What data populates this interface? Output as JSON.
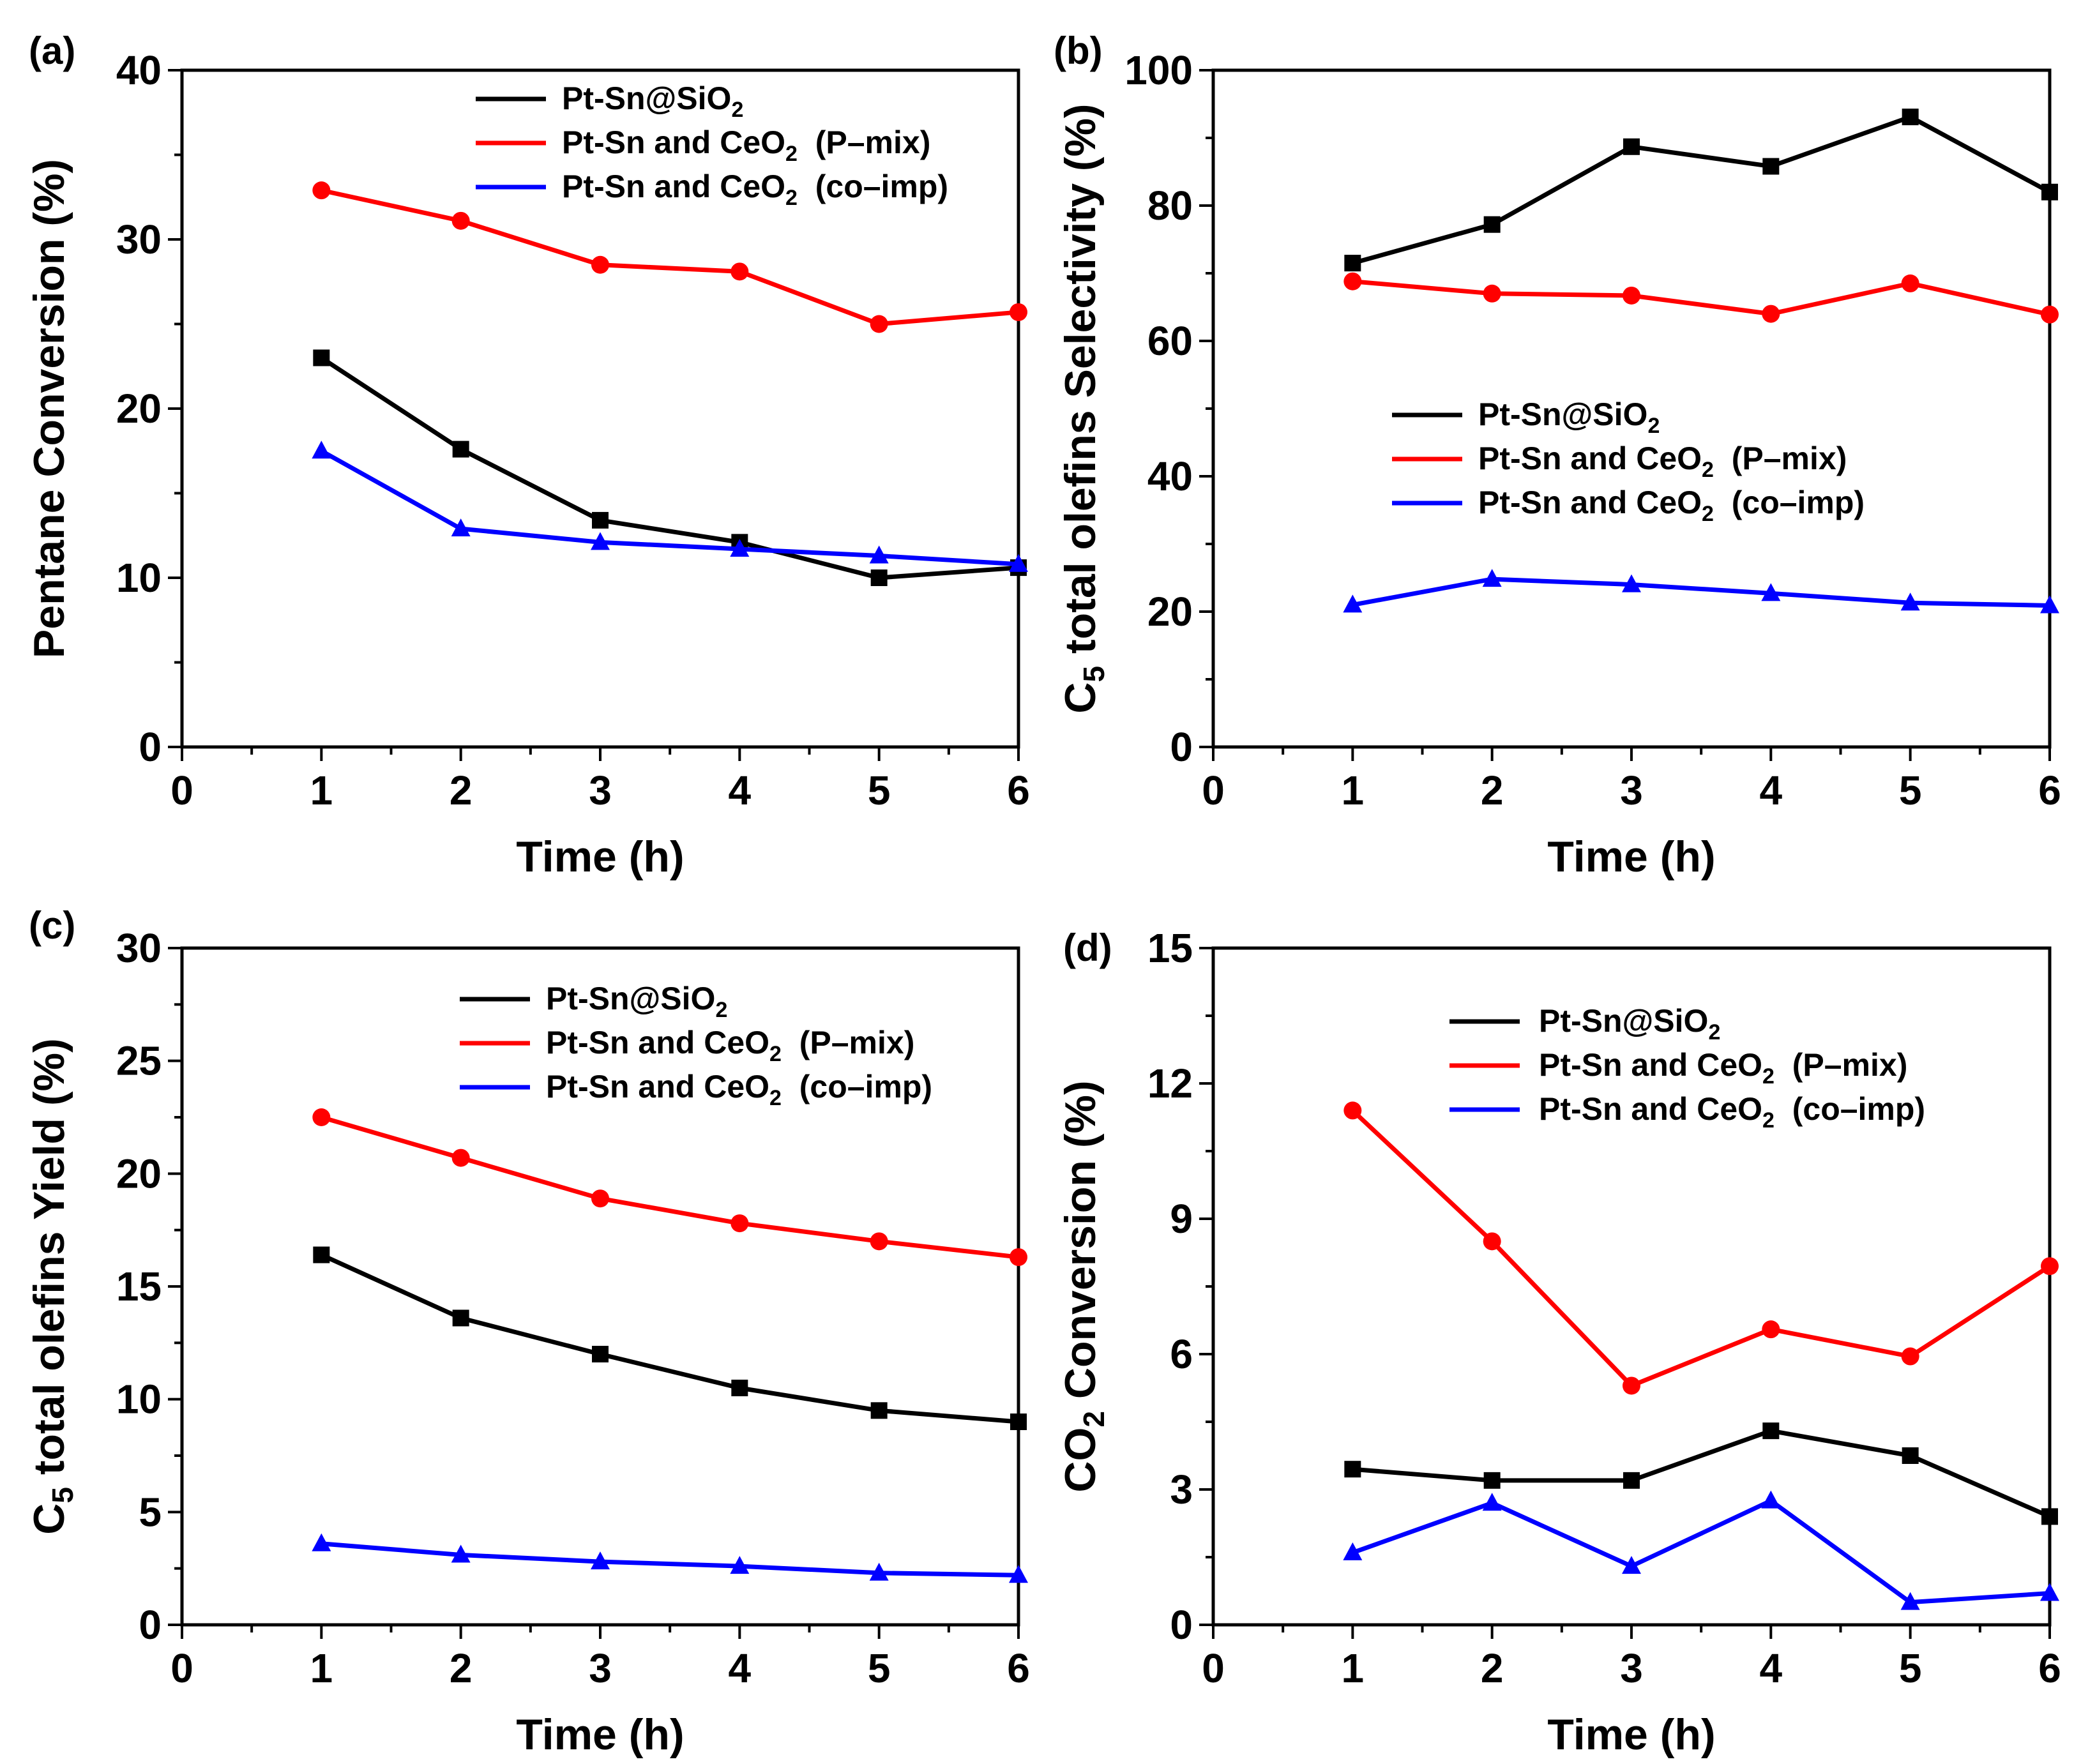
{
  "figure": {
    "colors": {
      "black": "#000000",
      "red": "#ff0000",
      "blue": "#0000ff"
    }
  },
  "chart_data": [
    {
      "panel_label": "(a)",
      "type": "line",
      "xlabel": "Time (h)",
      "ylabel": "Pentane Conversion (%)",
      "xlim": [
        0,
        6
      ],
      "ylim": [
        0,
        40
      ],
      "xticks": [
        "0",
        "1",
        "2",
        "3",
        "4",
        "5",
        "6"
      ],
      "yticks": [
        "0",
        "10",
        "20",
        "30",
        "40"
      ],
      "legend_position": "top-right",
      "x": [
        1,
        2,
        3,
        4,
        5,
        6
      ],
      "series": [
        {
          "name": "Pt-Sn@SiO",
          "sub": "2",
          "suffix": "",
          "color": "#000000",
          "marker": "square",
          "values": [
            23.0,
            17.6,
            13.4,
            12.1,
            10.0,
            10.6
          ]
        },
        {
          "name": "Pt-Sn and CeO",
          "sub": "2",
          "suffix": "  (P–mix)",
          "color": "#ff0000",
          "marker": "circle",
          "values": [
            32.9,
            31.1,
            28.5,
            28.1,
            25.0,
            25.7
          ]
        },
        {
          "name": "Pt-Sn and CeO",
          "sub": "2",
          "suffix": "  (co–imp)",
          "color": "#0000ff",
          "marker": "triangle",
          "values": [
            17.5,
            12.9,
            12.1,
            11.7,
            11.3,
            10.8
          ]
        }
      ]
    },
    {
      "panel_label": "(b)",
      "type": "line",
      "xlabel": "Time (h)",
      "ylabel": "C5 total olefins Selectivity (%)",
      "xlim": [
        0,
        6
      ],
      "ylim": [
        0,
        100
      ],
      "xticks": [
        "0",
        "1",
        "2",
        "3",
        "4",
        "5",
        "6"
      ],
      "yticks": [
        "0",
        "20",
        "40",
        "60",
        "80",
        "100"
      ],
      "legend_position": "center-right",
      "x": [
        1,
        2,
        3,
        4,
        5,
        6
      ],
      "series": [
        {
          "name": "Pt-Sn@SiO",
          "sub": "2",
          "suffix": "",
          "color": "#000000",
          "marker": "square",
          "values": [
            71.5,
            77.2,
            88.7,
            85.8,
            93.1,
            82.0
          ]
        },
        {
          "name": "Pt-Sn and CeO",
          "sub": "2",
          "suffix": "  (P–mix)",
          "color": "#ff0000",
          "marker": "circle",
          "values": [
            68.8,
            67.0,
            66.7,
            64.0,
            68.5,
            63.9
          ]
        },
        {
          "name": "Pt-Sn and CeO",
          "sub": "2",
          "suffix": "  (co–imp)",
          "color": "#0000ff",
          "marker": "triangle",
          "values": [
            21.0,
            24.8,
            24.0,
            22.7,
            21.3,
            20.9
          ]
        }
      ]
    },
    {
      "panel_label": "(c)",
      "type": "line",
      "xlabel": "Time (h)",
      "ylabel": "C5 total olefins Yield (%)",
      "xlim": [
        0,
        6
      ],
      "ylim": [
        0,
        30
      ],
      "xticks": [
        "0",
        "1",
        "2",
        "3",
        "4",
        "5",
        "6"
      ],
      "yticks": [
        "0",
        "5",
        "10",
        "15",
        "20",
        "25",
        "30"
      ],
      "legend_position": "top-right",
      "x": [
        1,
        2,
        3,
        4,
        5,
        6
      ],
      "series": [
        {
          "name": "Pt-Sn@SiO",
          "sub": "2",
          "suffix": "",
          "color": "#000000",
          "marker": "square",
          "values": [
            16.4,
            13.6,
            12.0,
            10.5,
            9.5,
            9.0
          ]
        },
        {
          "name": "Pt-Sn and CeO",
          "sub": "2",
          "suffix": "  (P–mix)",
          "color": "#ff0000",
          "marker": "circle",
          "values": [
            22.5,
            20.7,
            18.9,
            17.8,
            17.0,
            16.3
          ]
        },
        {
          "name": "Pt-Sn and CeO",
          "sub": "2",
          "suffix": "  (co–imp)",
          "color": "#0000ff",
          "marker": "triangle",
          "values": [
            3.6,
            3.1,
            2.8,
            2.6,
            2.3,
            2.2
          ]
        }
      ]
    },
    {
      "panel_label": "(d)",
      "type": "line",
      "xlabel": "Time (h)",
      "ylabel": "CO2 Conversion (%)",
      "xlim": [
        0,
        6
      ],
      "ylim": [
        0,
        15
      ],
      "xticks": [
        "0",
        "1",
        "2",
        "3",
        "4",
        "5",
        "6"
      ],
      "yticks": [
        "0",
        "3",
        "6",
        "9",
        "12",
        "15"
      ],
      "legend_position": "top-right",
      "x": [
        1,
        2,
        3,
        4,
        5,
        6
      ],
      "series": [
        {
          "name": "Pt-Sn@SiO",
          "sub": "2",
          "suffix": "",
          "color": "#000000",
          "marker": "square",
          "values": [
            3.45,
            3.2,
            3.2,
            4.3,
            3.75,
            2.4
          ]
        },
        {
          "name": "Pt-Sn and CeO",
          "sub": "2",
          "suffix": "  (P–mix)",
          "color": "#ff0000",
          "marker": "circle",
          "values": [
            11.4,
            8.5,
            5.3,
            6.55,
            5.95,
            7.95
          ]
        },
        {
          "name": "Pt-Sn and CeO",
          "sub": "2",
          "suffix": "  (co–imp)",
          "color": "#0000ff",
          "marker": "triangle",
          "values": [
            1.6,
            2.7,
            1.3,
            2.75,
            0.5,
            0.7
          ]
        }
      ]
    }
  ]
}
